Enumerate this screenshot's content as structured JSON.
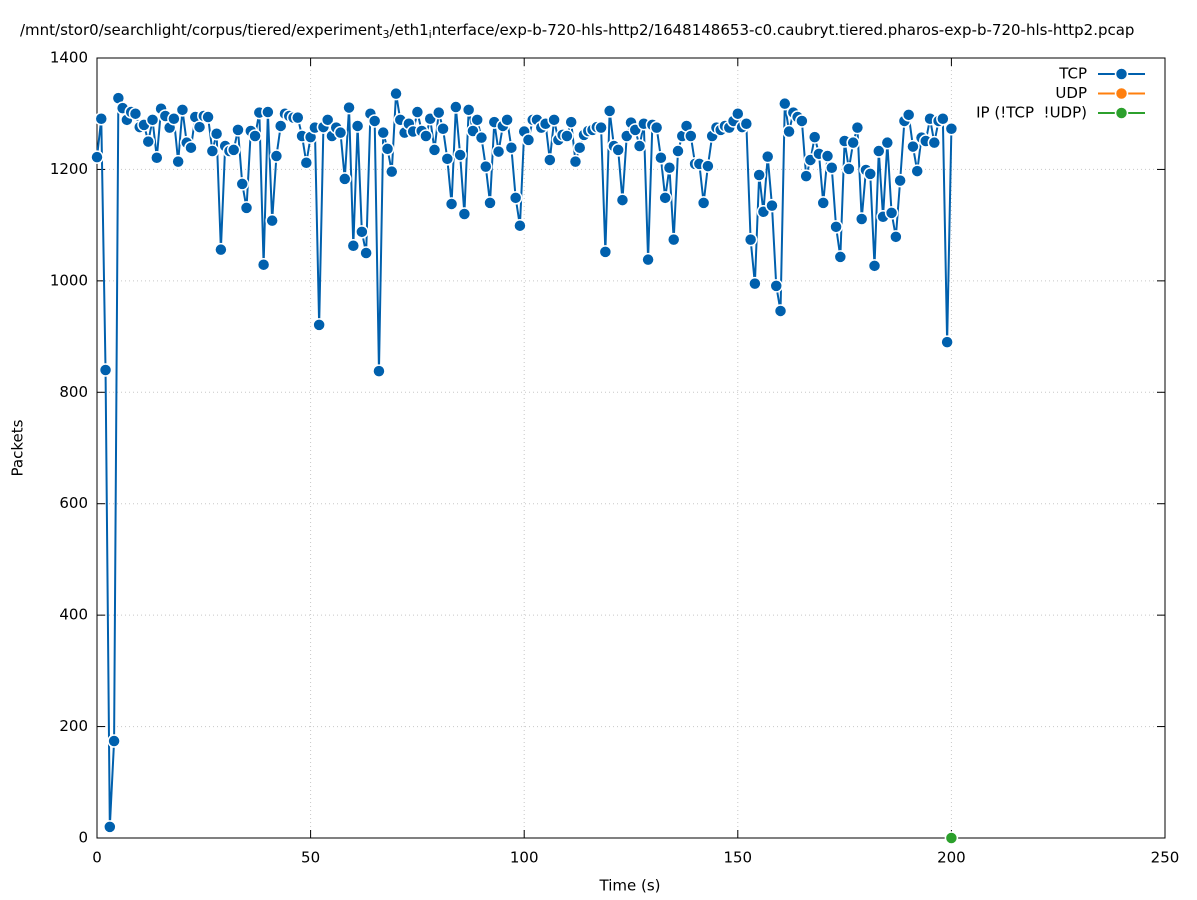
{
  "chart_data": {
    "type": "line",
    "title_parts": [
      "/mnt/stor0/searchlight/corpus/tiered/experiment",
      "3",
      "/eth1",
      "i",
      "nterface/exp-b-720-hls-http2/1648148653-c0.caubryt.tiered.pharos-exp-b-720-hls-http2.pcap"
    ],
    "x_label": "Time (s)",
    "y_label": "Packets",
    "xlim": [
      0,
      250
    ],
    "xticks": [
      0,
      50,
      100,
      150,
      200,
      250
    ],
    "ylim": [
      0,
      1400
    ],
    "yticks": [
      0,
      200,
      400,
      600,
      800,
      1000,
      1200,
      1400
    ],
    "grid": true,
    "legend": "top-right",
    "series": [
      {
        "name": "TCP",
        "color": "#0060ad",
        "x": [
          0,
          1,
          2,
          3,
          4,
          5,
          6,
          7,
          8,
          9,
          10,
          11,
          12,
          13,
          14,
          15,
          16,
          17,
          18,
          19,
          20,
          21,
          22,
          23,
          24,
          25,
          26,
          27,
          28,
          29,
          30,
          31,
          32,
          33,
          34,
          35,
          36,
          37,
          38,
          39,
          40,
          41,
          42,
          43,
          44,
          45,
          46,
          47,
          48,
          49,
          50,
          51,
          52,
          53,
          54,
          55,
          56,
          57,
          58,
          59,
          60,
          61,
          62,
          63,
          64,
          65,
          66,
          67,
          68,
          69,
          70,
          71,
          72,
          73,
          74,
          75,
          76,
          77,
          78,
          79,
          80,
          81,
          82,
          83,
          84,
          85,
          86,
          87,
          88,
          89,
          90,
          91,
          92,
          93,
          94,
          95,
          96,
          97,
          98,
          99,
          100,
          101,
          102,
          103,
          104,
          105,
          106,
          107,
          108,
          109,
          110,
          111,
          112,
          113,
          114,
          115,
          116,
          117,
          118,
          119,
          120,
          121,
          122,
          123,
          124,
          125,
          126,
          127,
          128,
          129,
          130,
          131,
          132,
          133,
          134,
          135,
          136,
          137,
          138,
          139,
          140,
          141,
          142,
          143,
          144,
          145,
          146,
          147,
          148,
          149,
          150,
          151,
          152,
          153,
          154,
          155,
          156,
          157,
          158,
          159,
          160,
          161,
          162,
          163,
          164,
          165,
          166,
          167,
          168,
          169,
          170,
          171,
          172,
          173,
          174,
          175,
          176,
          177,
          178,
          179,
          180,
          181,
          182,
          183,
          184,
          185,
          186,
          187,
          188,
          189,
          190,
          191,
          192,
          193,
          194,
          195,
          196,
          197,
          198,
          199,
          200
        ],
        "values": [
          1222,
          1291,
          840,
          20,
          174,
          1328,
          1310,
          1289,
          1303,
          1300,
          1276,
          1280,
          1250,
          1289,
          1221,
          1309,
          1296,
          1275,
          1291,
          1214,
          1307,
          1248,
          1239,
          1294,
          1276,
          1296,
          1294,
          1233,
          1264,
          1056,
          1242,
          1233,
          1235,
          1271,
          1174,
          1131,
          1269,
          1260,
          1302,
          1029,
          1303,
          1108,
          1224,
          1278,
          1300,
          1296,
          1293,
          1293,
          1260,
          1212,
          1258,
          1275,
          921,
          1276,
          1289,
          1260,
          1275,
          1266,
          1183,
          1311,
          1063,
          1278,
          1088,
          1050,
          1300,
          1287,
          838,
          1266,
          1237,
          1196,
          1336,
          1289,
          1266,
          1282,
          1268,
          1303,
          1269,
          1260,
          1291,
          1235,
          1302,
          1273,
          1219,
          1138,
          1312,
          1226,
          1120,
          1307,
          1269,
          1289,
          1257,
          1205,
          1140,
          1285,
          1232,
          1278,
          1289,
          1239,
          1149,
          1099,
          1268,
          1253,
          1289,
          1289,
          1275,
          1282,
          1217,
          1289,
          1253,
          1262,
          1260,
          1285,
          1214,
          1239,
          1262,
          1269,
          1271,
          1276,
          1275,
          1052,
          1305,
          1242,
          1235,
          1145,
          1260,
          1284,
          1271,
          1242,
          1282,
          1038,
          1280,
          1275,
          1221,
          1149,
          1203,
          1074,
          1233,
          1260,
          1278,
          1260,
          1210,
          1210,
          1140,
          1206,
          1260,
          1275,
          1271,
          1278,
          1275,
          1287,
          1300,
          1276,
          1282,
          1074,
          995,
          1190,
          1124,
          1223,
          1135,
          991,
          946,
          1318,
          1268,
          1302,
          1294,
          1287,
          1188,
          1217,
          1258,
          1228,
          1140,
          1224,
          1203,
          1097,
          1043,
          1251,
          1201,
          1248,
          1275,
          1111,
          1199,
          1192,
          1027,
          1233,
          1115,
          1248,
          1122,
          1079,
          1180,
          1287,
          1298,
          1241,
          1197,
          1257,
          1251,
          1291,
          1248,
          1287,
          1291,
          890,
          1273
        ]
      },
      {
        "name": "UDP",
        "color": "#ff7f0e",
        "x": [],
        "values": []
      },
      {
        "name": "IP (!TCP  !UDP)",
        "color": "#2ca02c",
        "x": [
          200
        ],
        "values": [
          0
        ]
      }
    ]
  }
}
